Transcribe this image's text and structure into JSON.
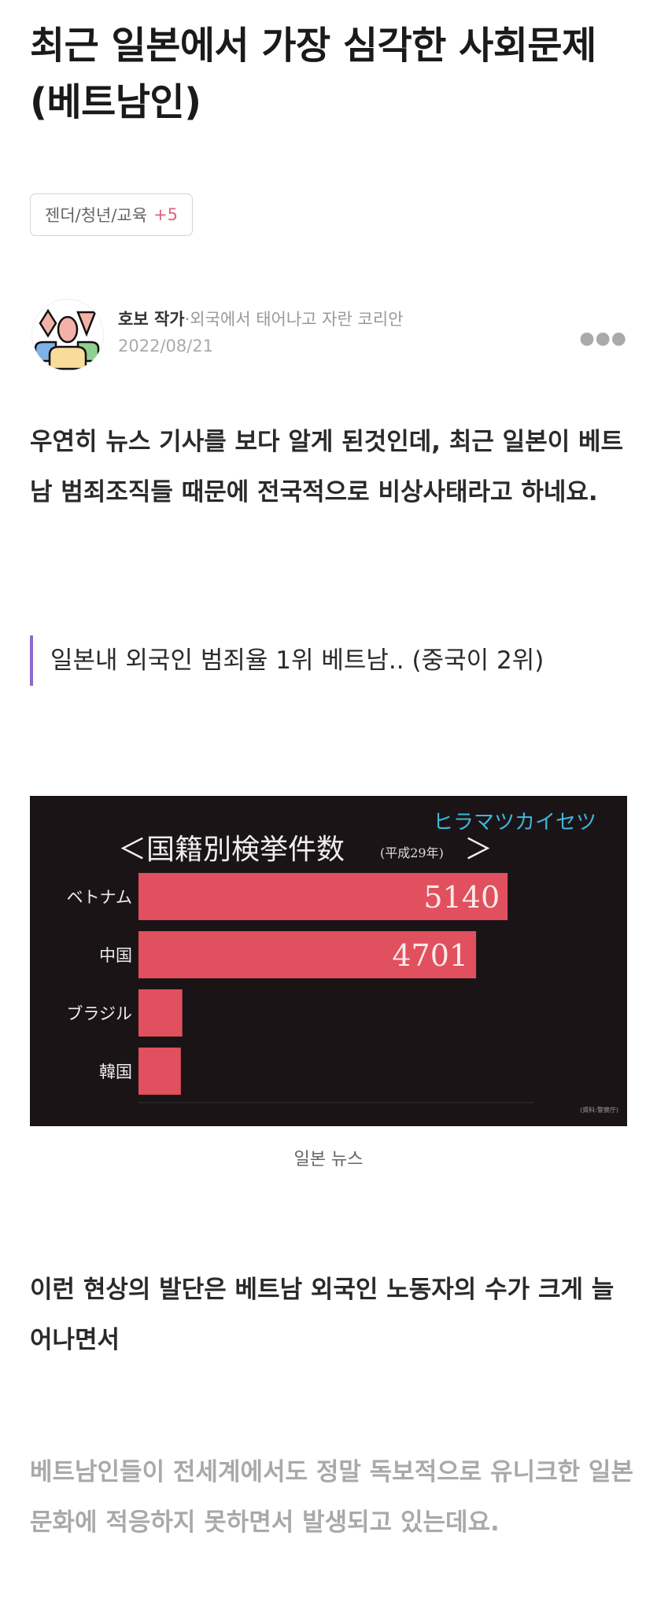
{
  "post": {
    "title": "최근 일본에서 가장 심각한 사회문제 (베트남인)",
    "tags": {
      "label": "젠더/청년/교육",
      "more": "+5"
    },
    "author": {
      "name": "호보 작가",
      "bio": "·외국에서 태어나고 자란 코리안",
      "date": "2022/08/21",
      "menu_icon": "more-horizontal-icon"
    },
    "paragraph1": "우연히 뉴스 기사를 보다 알게 된것인데, 최근 일본이 베트남 범죄조직들 때문에 전국적으로 비상사태라고 하네요.",
    "quote": "일본내 외국인 범죄율 1위 베트남.. (중국이 2위)",
    "image_caption": "일본 뉴스",
    "paragraph2": "이런 현상의 발단은 베트남 외국인 노동자의 수가 크게 늘어나면서",
    "paragraph3": "베트남인들이 전세계에서도 정말 독보적으로 유니크한 일본 문화에 적응하지 못하면서 발생되고 있는데요."
  },
  "colors": {
    "quote_bar": "#8a6bd1",
    "tag_more": "#e0607e",
    "bar": "#e0505e",
    "chart_bg": "#1b1416",
    "brand": "#3fb6dc"
  },
  "chart_data": {
    "type": "bar",
    "orientation": "horizontal",
    "title": "＜国籍別検挙件数",
    "subtitle": "(平成29年)",
    "title_end": "＞",
    "brand": "ヒラマツカイセツ",
    "source": "(資料:警察庁)",
    "categories": [
      "ベトナム",
      "中国",
      "ブラジル",
      "韓国"
    ],
    "values": [
      5140,
      4701,
      610,
      590
    ],
    "data_labels": [
      "5140",
      "4701",
      "",
      ""
    ],
    "xlim": [
      0,
      5500
    ],
    "grid": false
  }
}
